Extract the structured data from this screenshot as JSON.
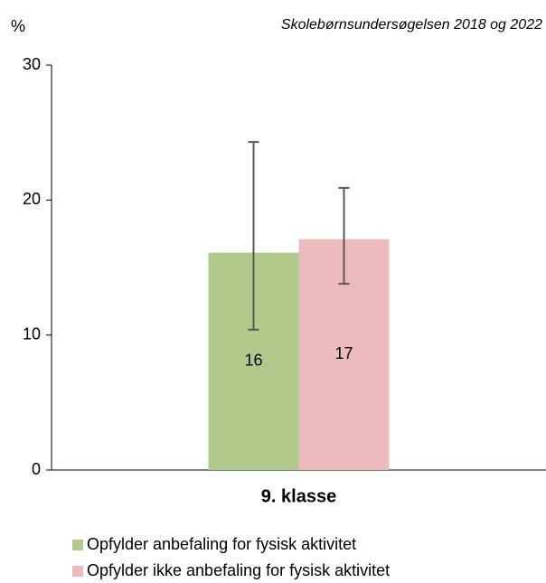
{
  "chart_data": {
    "type": "bar",
    "unit_label": "%",
    "subtitle": "Skolebørnsundersøgelsen 2018 og 2022",
    "categories": [
      "9. klasse"
    ],
    "series": [
      {
        "name": "Opfylder anbefaling for fysisk aktivitet",
        "color": "#b0ca8c",
        "values": [
          16.1
        ],
        "value_labels": [
          "16"
        ],
        "lower": [
          10.4
        ],
        "upper": [
          24.3
        ]
      },
      {
        "name": "Opfylder ikke anbefaling for fysisk aktivitet",
        "color": "#ecbcbc",
        "values": [
          17.1
        ],
        "value_labels": [
          "17"
        ],
        "lower": [
          13.8
        ],
        "upper": [
          20.9
        ]
      }
    ],
    "ylim": [
      0,
      30
    ],
    "yticks": [
      0,
      10,
      20,
      30
    ],
    "grid": false,
    "legend": "bottom"
  }
}
